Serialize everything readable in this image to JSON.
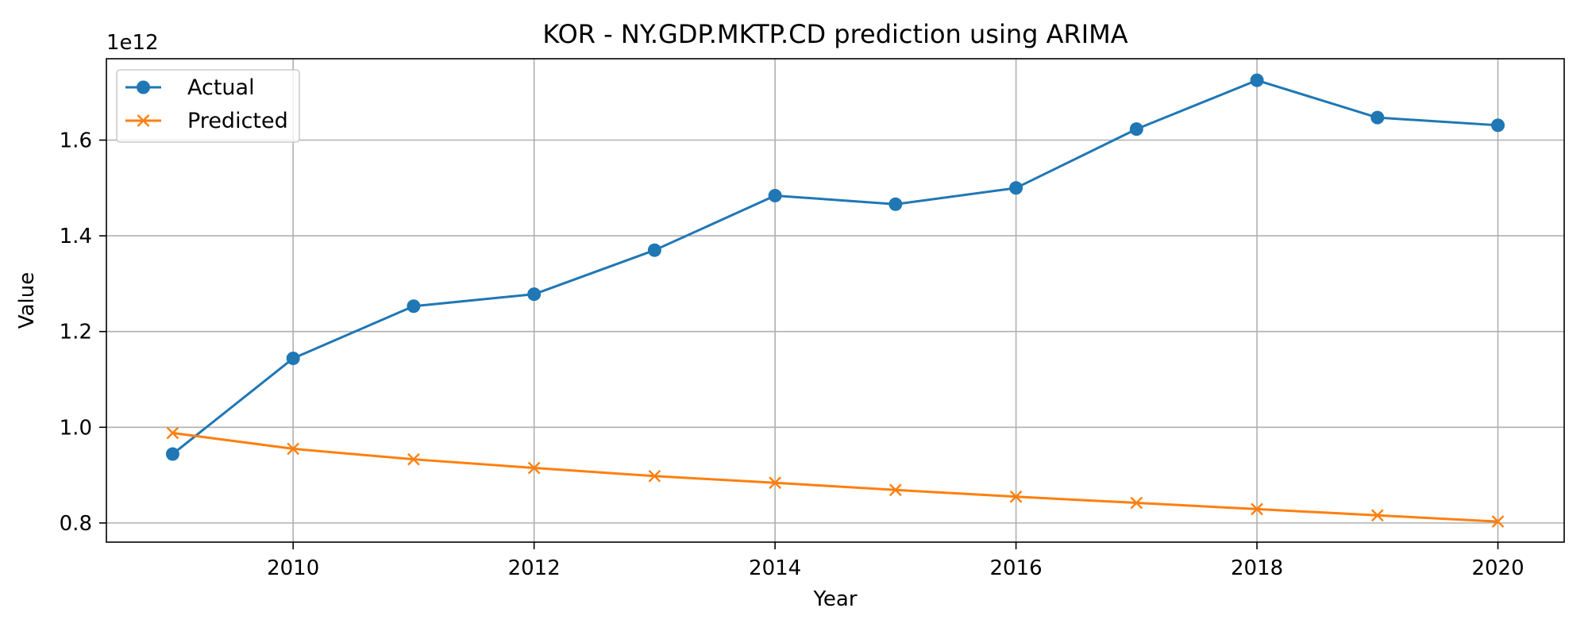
{
  "chart_data": {
    "type": "line",
    "title": "KOR - NY.GDP.MKTP.CD prediction using ARIMA",
    "xlabel": "Year",
    "ylabel": "Value",
    "y_offset_label": "1e12",
    "xlim": [
      2008.45,
      2020.55
    ],
    "ylim": [
      0.76,
      1.77
    ],
    "x_ticks": [
      2010,
      2012,
      2014,
      2016,
      2018,
      2020
    ],
    "x_tick_labels": [
      "2010",
      "2012",
      "2014",
      "2016",
      "2018",
      "2020"
    ],
    "y_ticks": [
      0.8,
      1.0,
      1.2,
      1.4,
      1.6
    ],
    "y_tick_labels": [
      "0.8",
      "1.0",
      "1.2",
      "1.4",
      "1.6"
    ],
    "grid": true,
    "legend_position": "top-left",
    "x": [
      2009,
      2010,
      2011,
      2012,
      2013,
      2014,
      2015,
      2016,
      2017,
      2018,
      2019,
      2020
    ],
    "series": [
      {
        "name": "Actual",
        "marker": "circle",
        "color": "#1f77b4",
        "values": [
          0.944,
          1.144,
          1.253,
          1.278,
          1.37,
          1.484,
          1.466,
          1.5,
          1.623,
          1.725,
          1.647,
          1.631
        ]
      },
      {
        "name": "Predicted",
        "marker": "x",
        "color": "#ff7f0e",
        "values": [
          0.988,
          0.955,
          0.933,
          0.915,
          0.898,
          0.884,
          0.869,
          0.855,
          0.842,
          0.829,
          0.816,
          0.803
        ]
      }
    ]
  }
}
